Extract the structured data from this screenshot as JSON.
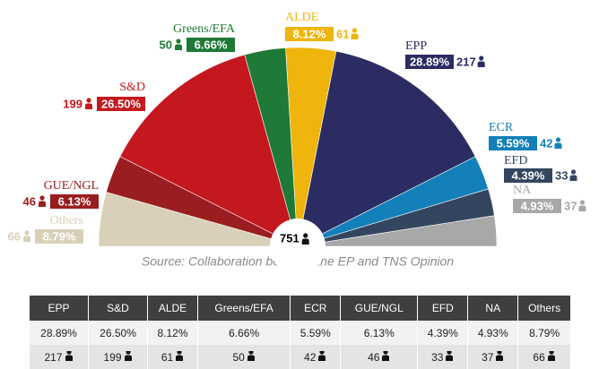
{
  "chart_data": {
    "type": "semicircle",
    "source": "Source: Collaboration between the EP and TNS Opinion",
    "total": 751,
    "categories": [
      "Others",
      "GUE/NGL",
      "S&D",
      "Greens/EFA",
      "ALDE",
      "EPP",
      "ECR",
      "EFD",
      "NA"
    ],
    "seats": [
      66,
      46,
      199,
      50,
      61,
      217,
      42,
      33,
      37
    ],
    "values": [
      8.79,
      6.13,
      26.5,
      6.66,
      8.12,
      28.89,
      5.59,
      4.39,
      4.93
    ],
    "value_labels": [
      "8.79%",
      "6.13%",
      "26.50%",
      "6.66%",
      "8.12%",
      "28.89%",
      "5.59%",
      "4.39%",
      "4.93%"
    ],
    "colors": [
      "#d8d0b8",
      "#9a1d1f",
      "#c4181e",
      "#1e7a36",
      "#efb50c",
      "#2b2c62",
      "#1380b9",
      "#34465f",
      "#a8a8a8"
    ]
  },
  "table": {
    "columns": [
      "EPP",
      "S&D",
      "ALDE",
      "Greens/EFA",
      "ECR",
      "GUE/NGL",
      "EFD",
      "NA",
      "Others"
    ],
    "rows": [
      [
        "28.89%",
        "26.50%",
        "8.12%",
        "6.66%",
        "5.59%",
        "6.13%",
        "4.39%",
        "4.93%",
        "8.79%"
      ],
      [
        217,
        199,
        61,
        50,
        42,
        46,
        33,
        37,
        66
      ]
    ]
  }
}
